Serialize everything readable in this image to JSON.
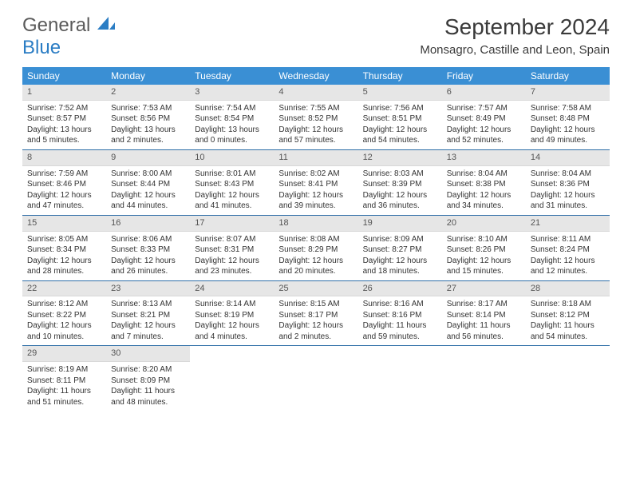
{
  "logo": {
    "line1": "General",
    "line2": "Blue"
  },
  "title": "September 2024",
  "location": "Monsagro, Castille and Leon, Spain",
  "colors": {
    "header_bg": "#3a8fd4",
    "header_text": "#ffffff",
    "daynum_bg": "#e6e6e6",
    "week_divider": "#2f6fa8",
    "logo_gray": "#5a5a5a",
    "logo_blue": "#2b7dc4"
  },
  "day_headers": [
    "Sunday",
    "Monday",
    "Tuesday",
    "Wednesday",
    "Thursday",
    "Friday",
    "Saturday"
  ],
  "weeks": [
    [
      {
        "n": "1",
        "sr": "7:52 AM",
        "ss": "8:57 PM",
        "dl": "13 hours and 5 minutes."
      },
      {
        "n": "2",
        "sr": "7:53 AM",
        "ss": "8:56 PM",
        "dl": "13 hours and 2 minutes."
      },
      {
        "n": "3",
        "sr": "7:54 AM",
        "ss": "8:54 PM",
        "dl": "13 hours and 0 minutes."
      },
      {
        "n": "4",
        "sr": "7:55 AM",
        "ss": "8:52 PM",
        "dl": "12 hours and 57 minutes."
      },
      {
        "n": "5",
        "sr": "7:56 AM",
        "ss": "8:51 PM",
        "dl": "12 hours and 54 minutes."
      },
      {
        "n": "6",
        "sr": "7:57 AM",
        "ss": "8:49 PM",
        "dl": "12 hours and 52 minutes."
      },
      {
        "n": "7",
        "sr": "7:58 AM",
        "ss": "8:48 PM",
        "dl": "12 hours and 49 minutes."
      }
    ],
    [
      {
        "n": "8",
        "sr": "7:59 AM",
        "ss": "8:46 PM",
        "dl": "12 hours and 47 minutes."
      },
      {
        "n": "9",
        "sr": "8:00 AM",
        "ss": "8:44 PM",
        "dl": "12 hours and 44 minutes."
      },
      {
        "n": "10",
        "sr": "8:01 AM",
        "ss": "8:43 PM",
        "dl": "12 hours and 41 minutes."
      },
      {
        "n": "11",
        "sr": "8:02 AM",
        "ss": "8:41 PM",
        "dl": "12 hours and 39 minutes."
      },
      {
        "n": "12",
        "sr": "8:03 AM",
        "ss": "8:39 PM",
        "dl": "12 hours and 36 minutes."
      },
      {
        "n": "13",
        "sr": "8:04 AM",
        "ss": "8:38 PM",
        "dl": "12 hours and 34 minutes."
      },
      {
        "n": "14",
        "sr": "8:04 AM",
        "ss": "8:36 PM",
        "dl": "12 hours and 31 minutes."
      }
    ],
    [
      {
        "n": "15",
        "sr": "8:05 AM",
        "ss": "8:34 PM",
        "dl": "12 hours and 28 minutes."
      },
      {
        "n": "16",
        "sr": "8:06 AM",
        "ss": "8:33 PM",
        "dl": "12 hours and 26 minutes."
      },
      {
        "n": "17",
        "sr": "8:07 AM",
        "ss": "8:31 PM",
        "dl": "12 hours and 23 minutes."
      },
      {
        "n": "18",
        "sr": "8:08 AM",
        "ss": "8:29 PM",
        "dl": "12 hours and 20 minutes."
      },
      {
        "n": "19",
        "sr": "8:09 AM",
        "ss": "8:27 PM",
        "dl": "12 hours and 18 minutes."
      },
      {
        "n": "20",
        "sr": "8:10 AM",
        "ss": "8:26 PM",
        "dl": "12 hours and 15 minutes."
      },
      {
        "n": "21",
        "sr": "8:11 AM",
        "ss": "8:24 PM",
        "dl": "12 hours and 12 minutes."
      }
    ],
    [
      {
        "n": "22",
        "sr": "8:12 AM",
        "ss": "8:22 PM",
        "dl": "12 hours and 10 minutes."
      },
      {
        "n": "23",
        "sr": "8:13 AM",
        "ss": "8:21 PM",
        "dl": "12 hours and 7 minutes."
      },
      {
        "n": "24",
        "sr": "8:14 AM",
        "ss": "8:19 PM",
        "dl": "12 hours and 4 minutes."
      },
      {
        "n": "25",
        "sr": "8:15 AM",
        "ss": "8:17 PM",
        "dl": "12 hours and 2 minutes."
      },
      {
        "n": "26",
        "sr": "8:16 AM",
        "ss": "8:16 PM",
        "dl": "11 hours and 59 minutes."
      },
      {
        "n": "27",
        "sr": "8:17 AM",
        "ss": "8:14 PM",
        "dl": "11 hours and 56 minutes."
      },
      {
        "n": "28",
        "sr": "8:18 AM",
        "ss": "8:12 PM",
        "dl": "11 hours and 54 minutes."
      }
    ],
    [
      {
        "n": "29",
        "sr": "8:19 AM",
        "ss": "8:11 PM",
        "dl": "11 hours and 51 minutes."
      },
      {
        "n": "30",
        "sr": "8:20 AM",
        "ss": "8:09 PM",
        "dl": "11 hours and 48 minutes."
      },
      null,
      null,
      null,
      null,
      null
    ]
  ],
  "labels": {
    "sunrise": "Sunrise: ",
    "sunset": "Sunset: ",
    "daylight": "Daylight: "
  }
}
